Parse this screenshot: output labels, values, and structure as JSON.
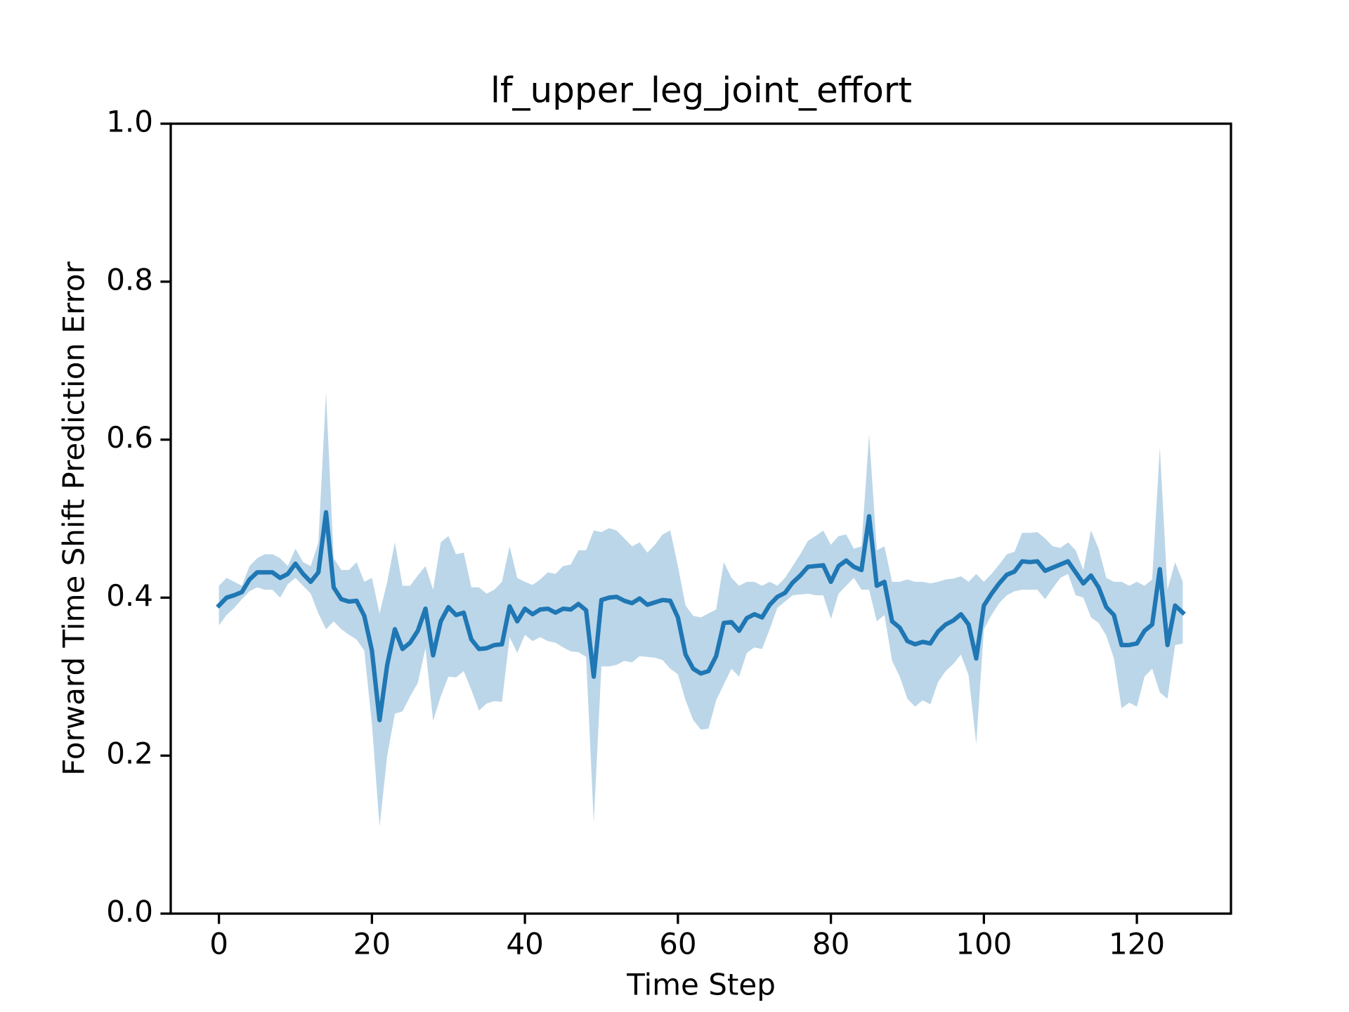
{
  "chart_data": {
    "type": "line",
    "title": "lf_upper_leg_joint_effort",
    "x_label": "Time Step",
    "y_label": "Forward Time Shift Prediction Error",
    "color": "#1f77b4",
    "band_color": "#1f77b4",
    "x": [
      0,
      1,
      2,
      3,
      4,
      5,
      6,
      7,
      8,
      9,
      10,
      11,
      12,
      13,
      14,
      15,
      16,
      17,
      18,
      19,
      20,
      21,
      22,
      23,
      24,
      25,
      26,
      27,
      28,
      29,
      30,
      31,
      32,
      33,
      34,
      35,
      36,
      37,
      38,
      39,
      40,
      41,
      42,
      43,
      44,
      45,
      46,
      47,
      48,
      49,
      50,
      51,
      52,
      53,
      54,
      55,
      56,
      57,
      58,
      59,
      60,
      61,
      62,
      63,
      64,
      65,
      66,
      67,
      68,
      69,
      70,
      71,
      72,
      73,
      74,
      75,
      76,
      77,
      78,
      79,
      80,
      81,
      82,
      83,
      84,
      85,
      86,
      87,
      88,
      89,
      90,
      91,
      92,
      93,
      94,
      95,
      96,
      97,
      98,
      99,
      100,
      101,
      102,
      103,
      104,
      105,
      106,
      107,
      108,
      109,
      110,
      111,
      112,
      113,
      114,
      115,
      116,
      117,
      118,
      119,
      120,
      121,
      122,
      123,
      124,
      125,
      126
    ],
    "values": [
      0.39,
      0.4,
      0.403,
      0.407,
      0.423,
      0.432,
      0.432,
      0.432,
      0.425,
      0.43,
      0.443,
      0.43,
      0.42,
      0.432,
      0.508,
      0.413,
      0.398,
      0.395,
      0.396,
      0.377,
      0.333,
      0.245,
      0.315,
      0.36,
      0.335,
      0.343,
      0.358,
      0.386,
      0.327,
      0.37,
      0.388,
      0.378,
      0.381,
      0.347,
      0.335,
      0.336,
      0.34,
      0.341,
      0.389,
      0.37,
      0.386,
      0.379,
      0.385,
      0.386,
      0.381,
      0.386,
      0.385,
      0.392,
      0.384,
      0.3,
      0.397,
      0.4,
      0.401,
      0.396,
      0.393,
      0.399,
      0.391,
      0.394,
      0.397,
      0.396,
      0.375,
      0.328,
      0.31,
      0.304,
      0.307,
      0.326,
      0.368,
      0.369,
      0.358,
      0.374,
      0.379,
      0.375,
      0.391,
      0.401,
      0.406,
      0.419,
      0.428,
      0.439,
      0.44,
      0.441,
      0.42,
      0.44,
      0.447,
      0.439,
      0.435,
      0.503,
      0.415,
      0.42,
      0.37,
      0.362,
      0.345,
      0.341,
      0.344,
      0.342,
      0.357,
      0.366,
      0.371,
      0.379,
      0.366,
      0.323,
      0.39,
      0.405,
      0.418,
      0.429,
      0.433,
      0.446,
      0.445,
      0.446,
      0.434,
      0.438,
      0.442,
      0.446,
      0.432,
      0.418,
      0.428,
      0.413,
      0.388,
      0.378,
      0.34,
      0.34,
      0.342,
      0.358,
      0.366,
      0.436,
      0.34,
      0.39,
      0.381
    ],
    "upper": [
      0.415,
      0.425,
      0.42,
      0.415,
      0.44,
      0.45,
      0.455,
      0.455,
      0.45,
      0.44,
      0.462,
      0.445,
      0.44,
      0.47,
      0.66,
      0.45,
      0.435,
      0.435,
      0.445,
      0.42,
      0.425,
      0.38,
      0.42,
      0.47,
      0.415,
      0.415,
      0.428,
      0.44,
      0.41,
      0.47,
      0.478,
      0.455,
      0.457,
      0.413,
      0.413,
      0.405,
      0.41,
      0.42,
      0.465,
      0.425,
      0.42,
      0.416,
      0.423,
      0.432,
      0.43,
      0.44,
      0.442,
      0.46,
      0.46,
      0.485,
      0.483,
      0.488,
      0.485,
      0.475,
      0.465,
      0.47,
      0.457,
      0.467,
      0.48,
      0.485,
      0.44,
      0.39,
      0.377,
      0.375,
      0.38,
      0.385,
      0.445,
      0.425,
      0.415,
      0.42,
      0.42,
      0.415,
      0.42,
      0.415,
      0.425,
      0.44,
      0.455,
      0.472,
      0.478,
      0.485,
      0.467,
      0.478,
      0.48,
      0.462,
      0.465,
      0.607,
      0.46,
      0.465,
      0.42,
      0.42,
      0.423,
      0.42,
      0.42,
      0.418,
      0.42,
      0.423,
      0.424,
      0.427,
      0.42,
      0.43,
      0.42,
      0.43,
      0.442,
      0.455,
      0.458,
      0.482,
      0.482,
      0.483,
      0.475,
      0.465,
      0.463,
      0.47,
      0.46,
      0.435,
      0.485,
      0.462,
      0.425,
      0.42,
      0.42,
      0.415,
      0.42,
      0.415,
      0.423,
      0.59,
      0.41,
      0.445,
      0.42
    ],
    "lower": [
      0.365,
      0.378,
      0.387,
      0.398,
      0.408,
      0.413,
      0.41,
      0.41,
      0.4,
      0.417,
      0.425,
      0.415,
      0.405,
      0.38,
      0.36,
      0.37,
      0.36,
      0.353,
      0.347,
      0.333,
      0.24,
      0.11,
      0.2,
      0.253,
      0.256,
      0.275,
      0.292,
      0.336,
      0.244,
      0.275,
      0.3,
      0.299,
      0.307,
      0.283,
      0.257,
      0.266,
      0.269,
      0.268,
      0.35,
      0.33,
      0.353,
      0.345,
      0.35,
      0.345,
      0.343,
      0.337,
      0.332,
      0.331,
      0.325,
      0.115,
      0.313,
      0.313,
      0.315,
      0.32,
      0.318,
      0.326,
      0.325,
      0.324,
      0.321,
      0.31,
      0.303,
      0.27,
      0.245,
      0.233,
      0.234,
      0.27,
      0.29,
      0.31,
      0.3,
      0.33,
      0.337,
      0.335,
      0.36,
      0.387,
      0.395,
      0.403,
      0.404,
      0.405,
      0.403,
      0.403,
      0.373,
      0.405,
      0.415,
      0.425,
      0.41,
      0.41,
      0.37,
      0.378,
      0.32,
      0.3,
      0.272,
      0.262,
      0.27,
      0.265,
      0.293,
      0.307,
      0.316,
      0.328,
      0.302,
      0.215,
      0.36,
      0.378,
      0.393,
      0.403,
      0.408,
      0.41,
      0.41,
      0.41,
      0.398,
      0.412,
      0.425,
      0.43,
      0.403,
      0.4,
      0.375,
      0.368,
      0.352,
      0.323,
      0.26,
      0.267,
      0.262,
      0.3,
      0.31,
      0.28,
      0.272,
      0.34,
      0.342
    ],
    "xlim": [
      -6.3,
      132.3
    ],
    "xticks": [
      0,
      20,
      40,
      60,
      80,
      100,
      120
    ],
    "ylim": [
      0,
      1
    ],
    "yticks": [
      {
        "value": 0,
        "label": "0.0"
      },
      0.2,
      0.4,
      0.6,
      0.8,
      {
        "value": 1,
        "label": "1.0"
      }
    ],
    "grid": false
  }
}
